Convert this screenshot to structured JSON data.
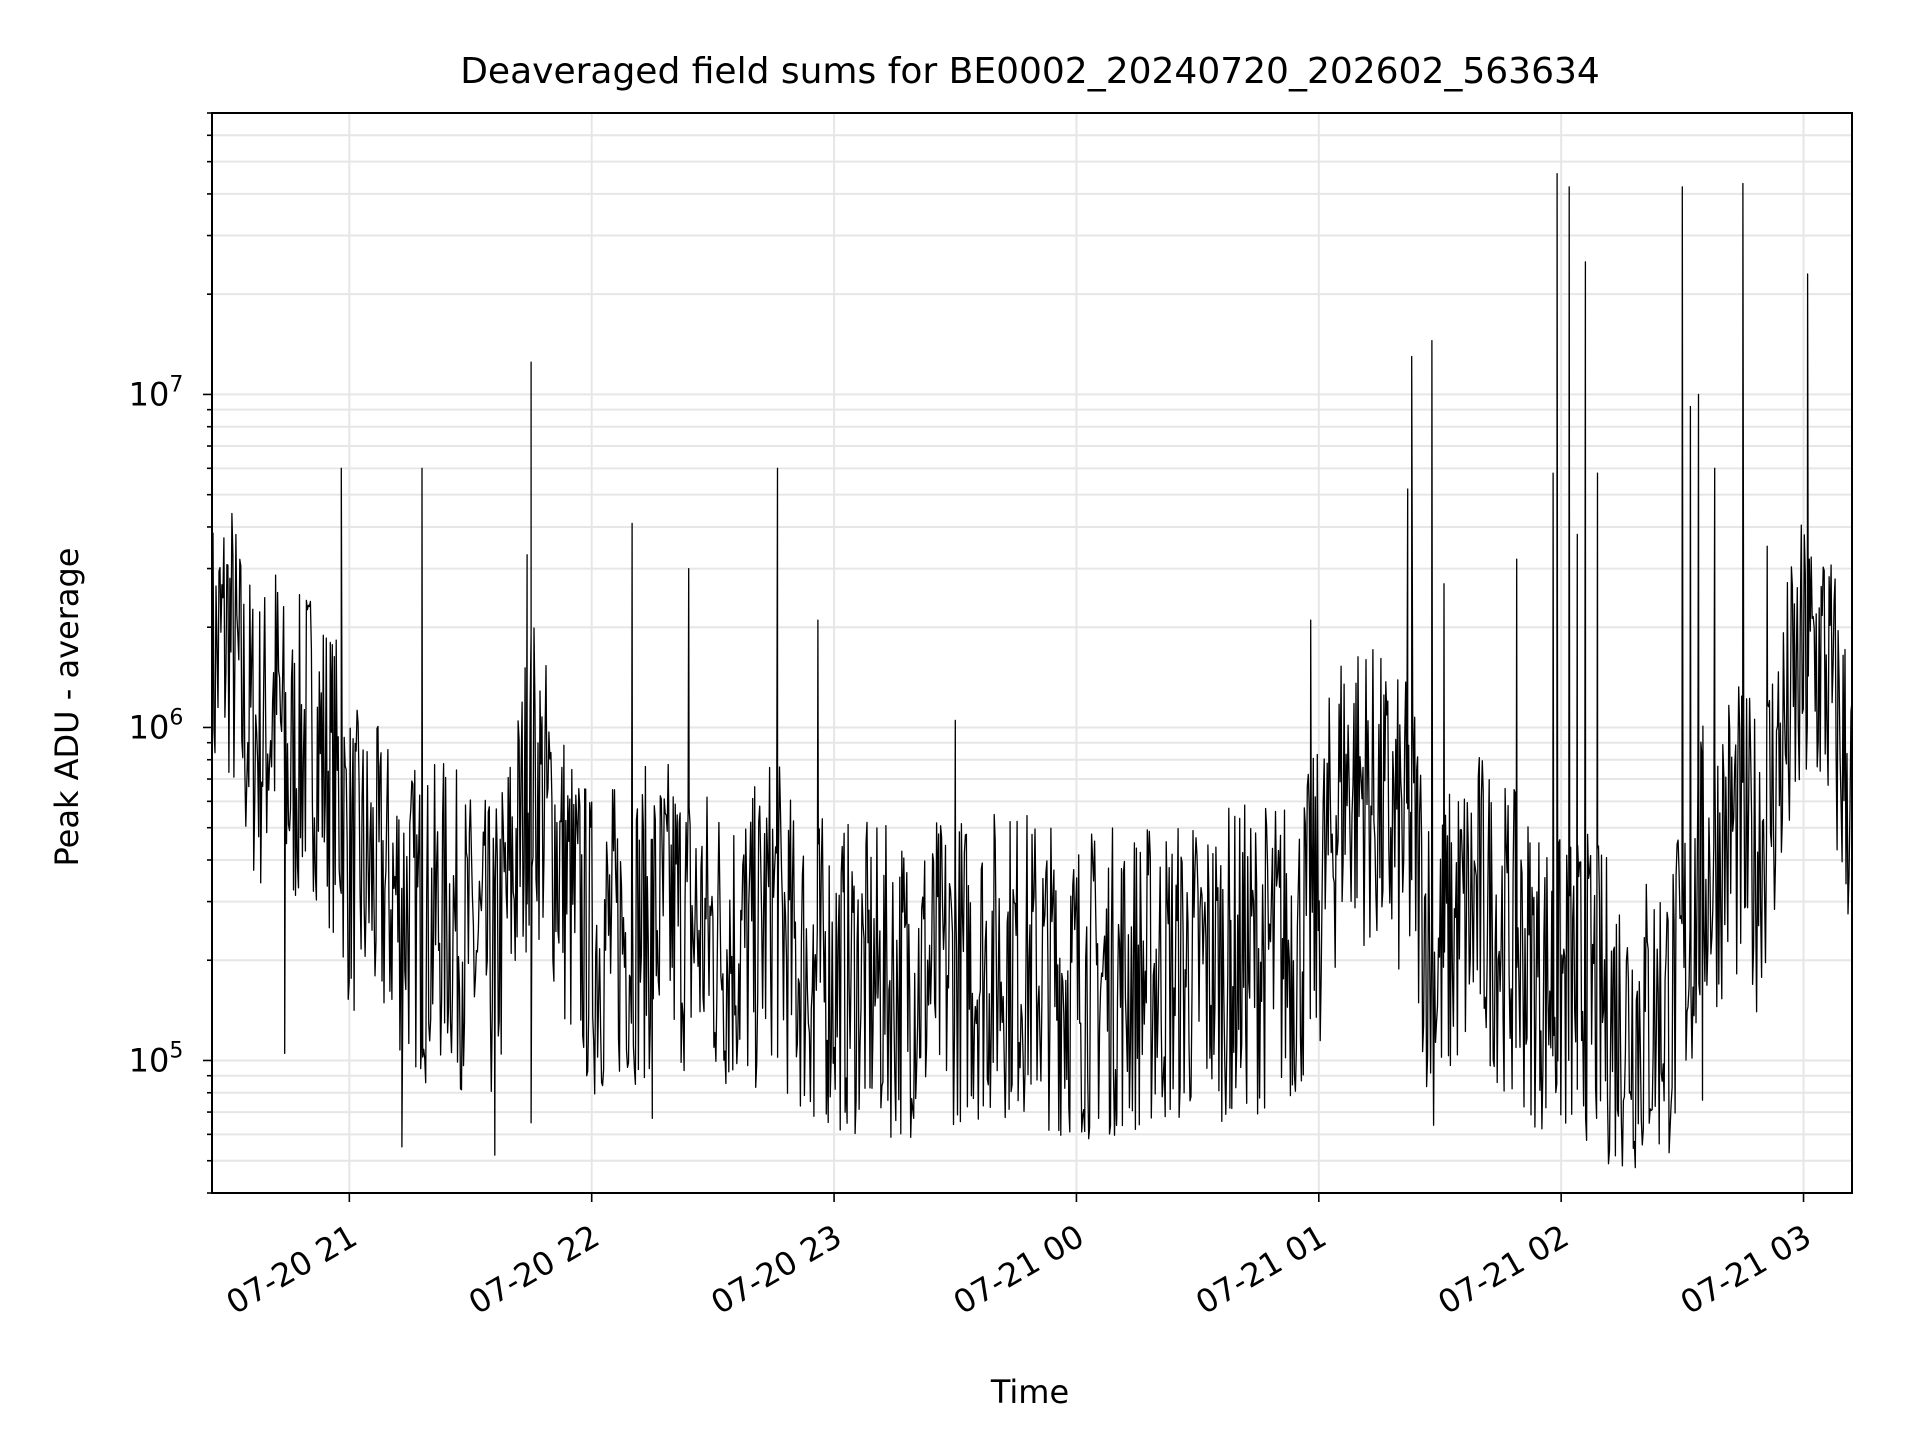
{
  "chart_data": {
    "type": "line",
    "title": "Deaveraged field sums for BE0002_20240720_202602_563634",
    "xlabel": "Time",
    "ylabel": "Peak ADU - average",
    "y_scale": "log",
    "y_base": 10,
    "xlim": [
      "2024-07-20 20:26",
      "2024-07-21 03:12"
    ],
    "ylim": [
      40000,
      70000000
    ],
    "x_ticks": [
      "07-20 21",
      "07-20 22",
      "07-20 23",
      "07-21 00",
      "07-21 01",
      "07-21 02",
      "07-21 03"
    ],
    "y_ticks": [
      {
        "mantissa": "10",
        "exponent": "5"
      },
      {
        "mantissa": "10",
        "exponent": "6"
      },
      {
        "mantissa": "10",
        "exponent": "7"
      }
    ],
    "grid": true,
    "line_color": "#000000",
    "grid_color": "#e6e6e6",
    "series": [
      {
        "x": [
          "2024-07-20 20:26",
          "2024-07-20 20:30",
          "2024-07-20 20:34",
          "2024-07-20 20:38",
          "2024-07-20 20:42",
          "2024-07-20 20:45",
          "2024-07-20 20:50",
          "2024-07-20 20:54",
          "2024-07-20 20:58",
          "2024-07-20 21:00",
          "2024-07-20 21:06",
          "2024-07-20 21:13",
          "2024-07-20 21:19",
          "2024-07-20 21:24",
          "2024-07-20 21:30",
          "2024-07-20 21:36",
          "2024-07-20 21:42",
          "2024-07-20 21:45",
          "2024-07-20 21:50",
          "2024-07-20 21:55",
          "2024-07-20 22:00",
          "2024-07-20 22:10",
          "2024-07-20 22:20",
          "2024-07-20 22:30",
          "2024-07-20 22:40",
          "2024-07-20 22:45",
          "2024-07-20 22:50",
          "2024-07-20 23:00",
          "2024-07-20 23:15",
          "2024-07-20 23:30",
          "2024-07-20 23:45",
          "2024-07-21 00:00",
          "2024-07-21 00:20",
          "2024-07-21 00:40",
          "2024-07-21 00:55",
          "2024-07-21 01:00",
          "2024-07-21 01:06",
          "2024-07-21 01:12",
          "2024-07-21 01:18",
          "2024-07-21 01:24",
          "2024-07-21 01:28",
          "2024-07-21 01:34",
          "2024-07-21 01:40",
          "2024-07-21 01:48",
          "2024-07-21 01:55",
          "2024-07-21 02:00",
          "2024-07-21 02:06",
          "2024-07-21 02:12",
          "2024-07-21 02:20",
          "2024-07-21 02:28",
          "2024-07-21 02:35",
          "2024-07-21 02:42",
          "2024-07-21 02:48",
          "2024-07-21 02:55",
          "2024-07-21 03:00",
          "2024-07-21 03:05",
          "2024-07-21 03:12"
        ],
        "y": [
          1500000,
          2000000,
          1100000,
          900000,
          1200000,
          700000,
          1000000,
          800000,
          600000,
          400000,
          350000,
          300000,
          250000,
          280000,
          220000,
          200000,
          450000,
          800000,
          500000,
          300000,
          220000,
          250000,
          280000,
          230000,
          220000,
          300000,
          200000,
          180000,
          170000,
          190000,
          200000,
          170000,
          180000,
          200000,
          220000,
          300000,
          700000,
          650000,
          500000,
          450000,
          180000,
          250000,
          300000,
          220000,
          180000,
          160000,
          170000,
          140000,
          130000,
          150000,
          350000,
          500000,
          400000,
          900000,
          1500000,
          1600000,
          600000
        ]
      }
    ],
    "spikes": [
      {
        "x": "2024-07-20 20:58",
        "y": 6000000
      },
      {
        "x": "2024-07-20 21:18",
        "y": 6000000
      },
      {
        "x": "2024-07-20 21:45",
        "y": 12500000
      },
      {
        "x": "2024-07-20 21:44",
        "y": 3300000
      },
      {
        "x": "2024-07-20 22:10",
        "y": 4100000
      },
      {
        "x": "2024-07-20 22:24",
        "y": 3000000
      },
      {
        "x": "2024-07-20 22:46",
        "y": 6000000
      },
      {
        "x": "2024-07-20 22:56",
        "y": 2100000
      },
      {
        "x": "2024-07-20 23:30",
        "y": 1050000
      },
      {
        "x": "2024-07-21 00:58",
        "y": 2100000
      },
      {
        "x": "2024-07-21 01:22",
        "y": 5200000
      },
      {
        "x": "2024-07-21 01:23",
        "y": 13000000
      },
      {
        "x": "2024-07-21 01:28",
        "y": 14500000
      },
      {
        "x": "2024-07-21 01:31",
        "y": 2700000
      },
      {
        "x": "2024-07-21 01:49",
        "y": 3200000
      },
      {
        "x": "2024-07-21 01:58",
        "y": 5800000
      },
      {
        "x": "2024-07-21 01:59",
        "y": 46000000
      },
      {
        "x": "2024-07-21 02:02",
        "y": 42000000
      },
      {
        "x": "2024-07-21 02:04",
        "y": 3800000
      },
      {
        "x": "2024-07-21 02:06",
        "y": 25000000
      },
      {
        "x": "2024-07-21 02:09",
        "y": 5800000
      },
      {
        "x": "2024-07-21 02:30",
        "y": 42000000
      },
      {
        "x": "2024-07-21 02:32",
        "y": 9200000
      },
      {
        "x": "2024-07-21 02:34",
        "y": 10000000
      },
      {
        "x": "2024-07-21 02:38",
        "y": 6000000
      },
      {
        "x": "2024-07-21 02:45",
        "y": 43000000
      },
      {
        "x": "2024-07-21 02:51",
        "y": 3500000
      },
      {
        "x": "2024-07-21 03:01",
        "y": 23000000
      }
    ],
    "dips": [
      {
        "x": "2024-07-20 20:44",
        "y": 105000
      },
      {
        "x": "2024-07-20 21:13",
        "y": 55000
      },
      {
        "x": "2024-07-20 21:36",
        "y": 52000
      },
      {
        "x": "2024-07-20 21:45",
        "y": 65000
      },
      {
        "x": "2024-07-20 22:15",
        "y": 67000
      },
      {
        "x": "2024-07-20 22:55",
        "y": 68000
      },
      {
        "x": "2024-07-21 00:10",
        "y": 68000
      },
      {
        "x": "2024-07-21 00:38",
        "y": 72000
      },
      {
        "x": "2024-07-21 02:04",
        "y": 82000
      },
      {
        "x": "2024-07-21 02:35",
        "y": 76000
      }
    ]
  }
}
